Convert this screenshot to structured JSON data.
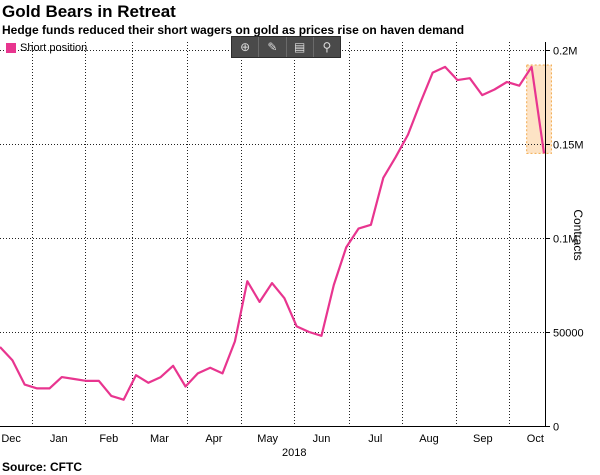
{
  "title": "Gold Bears in Retreat",
  "subtitle": "Hedge funds reduced their short wagers on gold as prices rise on haven demand",
  "source": "Source: CFTC",
  "colors": {
    "series": "#e8358f",
    "highlight_fill": "#fde3c5",
    "highlight_border": "#f2a94a",
    "grid": "#222222"
  },
  "toolbar": {
    "icons": [
      "crosshair-icon",
      "pencil-icon",
      "table-icon",
      "zoom-icon"
    ]
  },
  "chart_data": {
    "type": "line",
    "title": "Gold Bears in Retreat",
    "ylabel": "Contracts",
    "xlabel": "",
    "ylim": [
      0,
      200000
    ],
    "yticks": [
      0,
      50000,
      100000,
      150000,
      200000
    ],
    "ytick_labels": [
      "0",
      "50000",
      "0.1M",
      "0.15M",
      "0.2M"
    ],
    "x_month_labels": [
      "Dec",
      "Jan",
      "Feb",
      "Mar",
      "Apr",
      "May",
      "Jun",
      "Jul",
      "Aug",
      "Sep",
      "Oct"
    ],
    "year_label": "2018",
    "legend": {
      "position": "top-left",
      "entries": [
        "Short position"
      ]
    },
    "grid": true,
    "highlight": {
      "x_start": 42.6,
      "x_end": 44.6,
      "y_start": 145000,
      "y_end": 192000
    },
    "series": [
      {
        "name": "Short position",
        "x": [
          0,
          1,
          2,
          3,
          4,
          5,
          6,
          7,
          8,
          9,
          10,
          11,
          12,
          13,
          14,
          15,
          16,
          17,
          18,
          19,
          20,
          21,
          22,
          23,
          24,
          25,
          26,
          27,
          28,
          29,
          30,
          31,
          32,
          33,
          34,
          35,
          36,
          37,
          38,
          39,
          40,
          41,
          42,
          43,
          44
        ],
        "values": [
          42000,
          35000,
          22000,
          20000,
          20000,
          26000,
          25000,
          24000,
          24000,
          16000,
          14000,
          27000,
          23000,
          26000,
          32000,
          21000,
          28000,
          31000,
          28000,
          45000,
          77000,
          66000,
          76000,
          68000,
          53000,
          50000,
          48000,
          75000,
          95000,
          105000,
          107000,
          132000,
          143000,
          155000,
          172000,
          188000,
          191000,
          184000,
          185000,
          176000,
          179000,
          183000,
          181000,
          191000,
          145000
        ]
      }
    ]
  }
}
